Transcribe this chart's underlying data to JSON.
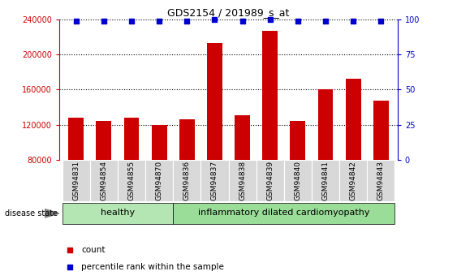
{
  "title": "GDS2154 / 201989_s_at",
  "categories": [
    "GSM94831",
    "GSM94854",
    "GSM94855",
    "GSM94870",
    "GSM94836",
    "GSM94837",
    "GSM94838",
    "GSM94839",
    "GSM94840",
    "GSM94841",
    "GSM94842",
    "GSM94843"
  ],
  "bar_values": [
    128000,
    124000,
    128000,
    120000,
    126000,
    213000,
    131000,
    227000,
    124000,
    160000,
    172000,
    147000
  ],
  "percentile_values": [
    99,
    99,
    99,
    99,
    99,
    100,
    99,
    100,
    99,
    99,
    99,
    99
  ],
  "bar_color": "#cc0000",
  "percentile_color": "#0000cc",
  "ylim_left": [
    80000,
    240000
  ],
  "ylim_right": [
    0,
    100
  ],
  "yticks_left": [
    80000,
    120000,
    160000,
    200000,
    240000
  ],
  "yticks_right": [
    0,
    25,
    50,
    75,
    100
  ],
  "healthy_count": 4,
  "disease_count": 8,
  "healthy_label": "healthy",
  "disease_label": "inflammatory dilated cardiomyopathy",
  "disease_state_label": "disease state",
  "legend_count_label": "count",
  "legend_percentile_label": "percentile rank within the sample",
  "healthy_color": "#b3e6b3",
  "disease_color": "#99dd99",
  "label_bg_color": "#d8d8d8",
  "bar_width": 0.55
}
